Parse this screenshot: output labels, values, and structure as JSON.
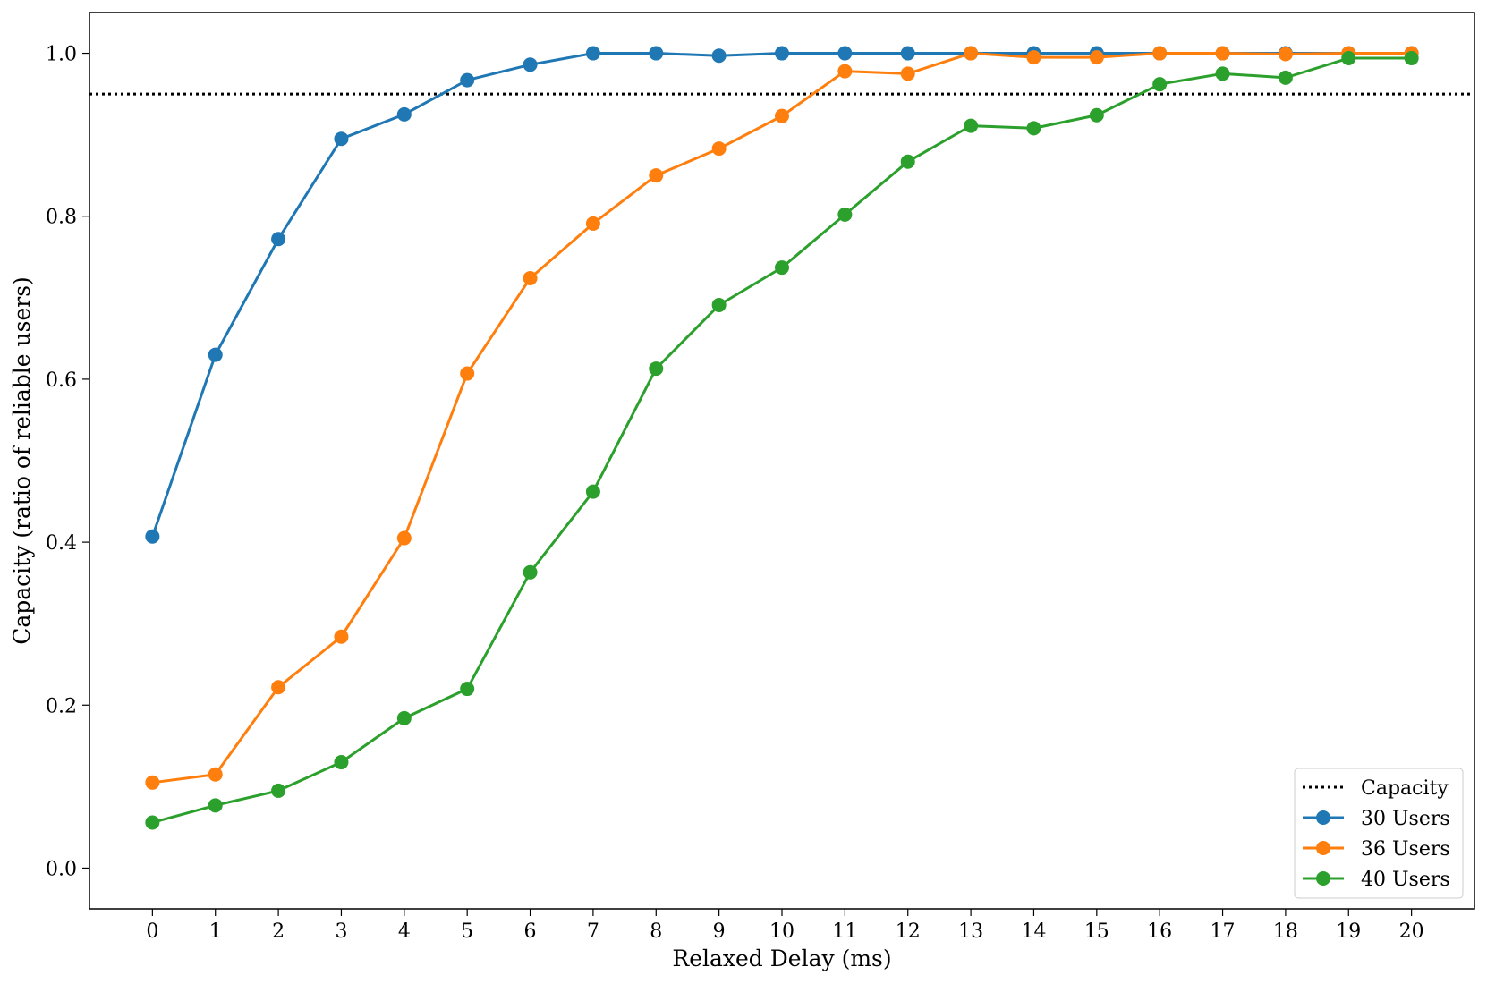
{
  "chart_data": {
    "type": "line",
    "title": "",
    "xlabel": "Relaxed Delay (ms)",
    "ylabel": "Capacity (ratio of reliable users)",
    "x": [
      0,
      1,
      2,
      3,
      4,
      5,
      6,
      7,
      8,
      9,
      10,
      11,
      12,
      13,
      14,
      15,
      16,
      17,
      18,
      19,
      20
    ],
    "x_ticks": [
      "0",
      "1",
      "2",
      "3",
      "4",
      "5",
      "6",
      "7",
      "8",
      "9",
      "10",
      "11",
      "12",
      "13",
      "14",
      "15",
      "16",
      "17",
      "18",
      "19",
      "20"
    ],
    "y_ticks": [
      "0.0",
      "0.2",
      "0.4",
      "0.6",
      "0.8",
      "1.0"
    ],
    "xlim": [
      -1,
      21
    ],
    "ylim": [
      -0.05,
      1.05
    ],
    "grid": false,
    "legend_position": "bottom-right",
    "reference_line": {
      "name": "Capacity",
      "y": 0.95,
      "style": "dotted",
      "color": "#000000"
    },
    "series": [
      {
        "name": "30 Users",
        "color": "#1f77b4",
        "values": [
          0.407,
          0.63,
          0.772,
          0.895,
          0.925,
          0.967,
          0.986,
          1.0,
          1.0,
          0.997,
          1.0,
          1.0,
          1.0,
          1.0,
          1.0,
          1.0,
          1.0,
          1.0,
          1.0,
          1.0,
          1.0
        ]
      },
      {
        "name": "36 Users",
        "color": "#ff7f0e",
        "values": [
          0.105,
          0.115,
          0.222,
          0.284,
          0.405,
          0.607,
          0.724,
          0.791,
          0.85,
          0.883,
          0.923,
          0.978,
          0.975,
          1.0,
          0.995,
          0.995,
          1.0,
          1.0,
          0.999,
          1.0,
          1.0
        ]
      },
      {
        "name": "40 Users",
        "color": "#2ca02c",
        "values": [
          0.056,
          0.077,
          0.095,
          0.13,
          0.184,
          0.22,
          0.363,
          0.462,
          0.613,
          0.691,
          0.737,
          0.802,
          0.867,
          0.911,
          0.908,
          0.924,
          0.962,
          0.975,
          0.97,
          0.994,
          0.994
        ]
      }
    ]
  }
}
